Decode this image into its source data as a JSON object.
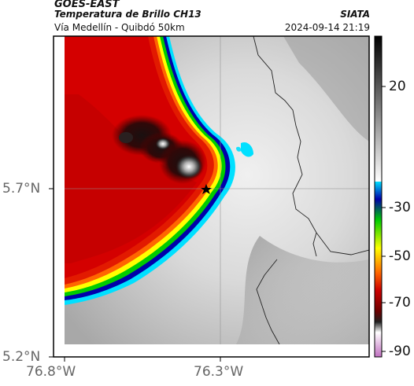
{
  "header": {
    "satellite": "GOES-EAST",
    "product": "Temperatura de Brillo CH13",
    "region": "Vía Medellín - Quibdó 50km",
    "agency": "SIATA",
    "datetime": "2024-09-14 21:19"
  },
  "map": {
    "x_ticks": [
      "76.8°W",
      "76.3°W"
    ],
    "y_ticks": [
      "5.7°N",
      "5.2°N"
    ],
    "marker": "star-marker",
    "colorbar": {
      "labels": [
        "20",
        "-30",
        "-50",
        "-70",
        "-90"
      ],
      "cold_colors": [
        "#c070c0",
        "#ffffff",
        "#6b0000",
        "#cc0000",
        "#ff6600",
        "#ffff00",
        "#00cc00",
        "#0000aa",
        "#00e0ff"
      ]
    }
  }
}
